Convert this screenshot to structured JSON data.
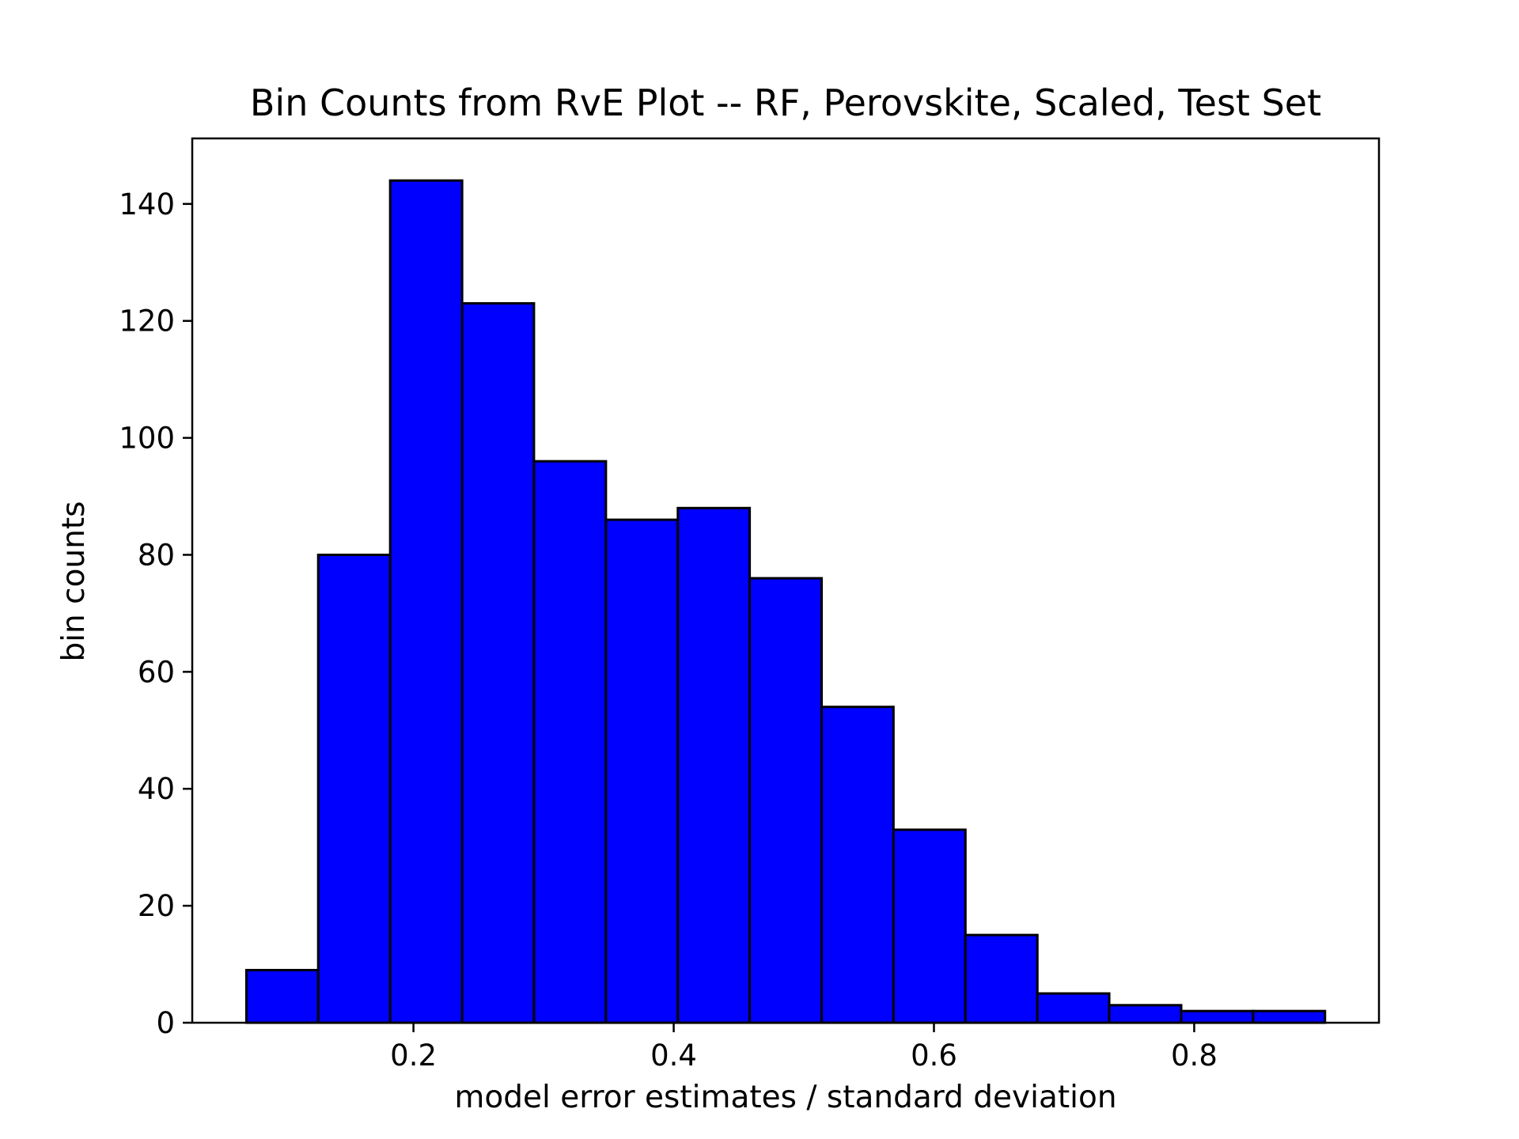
{
  "chart_data": {
    "type": "bar",
    "title": "Bin Counts from RvE Plot -- RF, Perovskite, Scaled, Test Set",
    "xlabel": "model error estimates / standard deviation",
    "ylabel": "bin counts",
    "bins": [
      {
        "x0": 0.0716,
        "x1": 0.1268,
        "count": 9
      },
      {
        "x0": 0.1268,
        "x1": 0.1821,
        "count": 80
      },
      {
        "x0": 0.1821,
        "x1": 0.2374,
        "count": 144
      },
      {
        "x0": 0.2374,
        "x1": 0.2926,
        "count": 123
      },
      {
        "x0": 0.2926,
        "x1": 0.3479,
        "count": 96
      },
      {
        "x0": 0.3479,
        "x1": 0.4032,
        "count": 86
      },
      {
        "x0": 0.4032,
        "x1": 0.4584,
        "count": 88
      },
      {
        "x0": 0.4584,
        "x1": 0.5137,
        "count": 76
      },
      {
        "x0": 0.5137,
        "x1": 0.5689,
        "count": 54
      },
      {
        "x0": 0.5689,
        "x1": 0.6242,
        "count": 33
      },
      {
        "x0": 0.6242,
        "x1": 0.6795,
        "count": 15
      },
      {
        "x0": 0.6795,
        "x1": 0.7347,
        "count": 5
      },
      {
        "x0": 0.7347,
        "x1": 0.79,
        "count": 3
      },
      {
        "x0": 0.79,
        "x1": 0.8453,
        "count": 2
      },
      {
        "x0": 0.8453,
        "x1": 0.9005,
        "count": 2
      }
    ],
    "xlim": [
      0.03,
      0.942
    ],
    "ylim": [
      0,
      151.2
    ],
    "xticks": [
      {
        "value": 0.2,
        "label": "0.2"
      },
      {
        "value": 0.4,
        "label": "0.4"
      },
      {
        "value": 0.6,
        "label": "0.6"
      },
      {
        "value": 0.8,
        "label": "0.8"
      }
    ],
    "yticks": [
      {
        "value": 0,
        "label": "0"
      },
      {
        "value": 20,
        "label": "20"
      },
      {
        "value": 40,
        "label": "40"
      },
      {
        "value": 60,
        "label": "60"
      },
      {
        "value": 80,
        "label": "80"
      },
      {
        "value": 100,
        "label": "100"
      },
      {
        "value": 120,
        "label": "120"
      },
      {
        "value": 140,
        "label": "140"
      }
    ],
    "bar_color": "#0000ff",
    "edge_color": "#000000",
    "grid": false,
    "legend": "none"
  }
}
